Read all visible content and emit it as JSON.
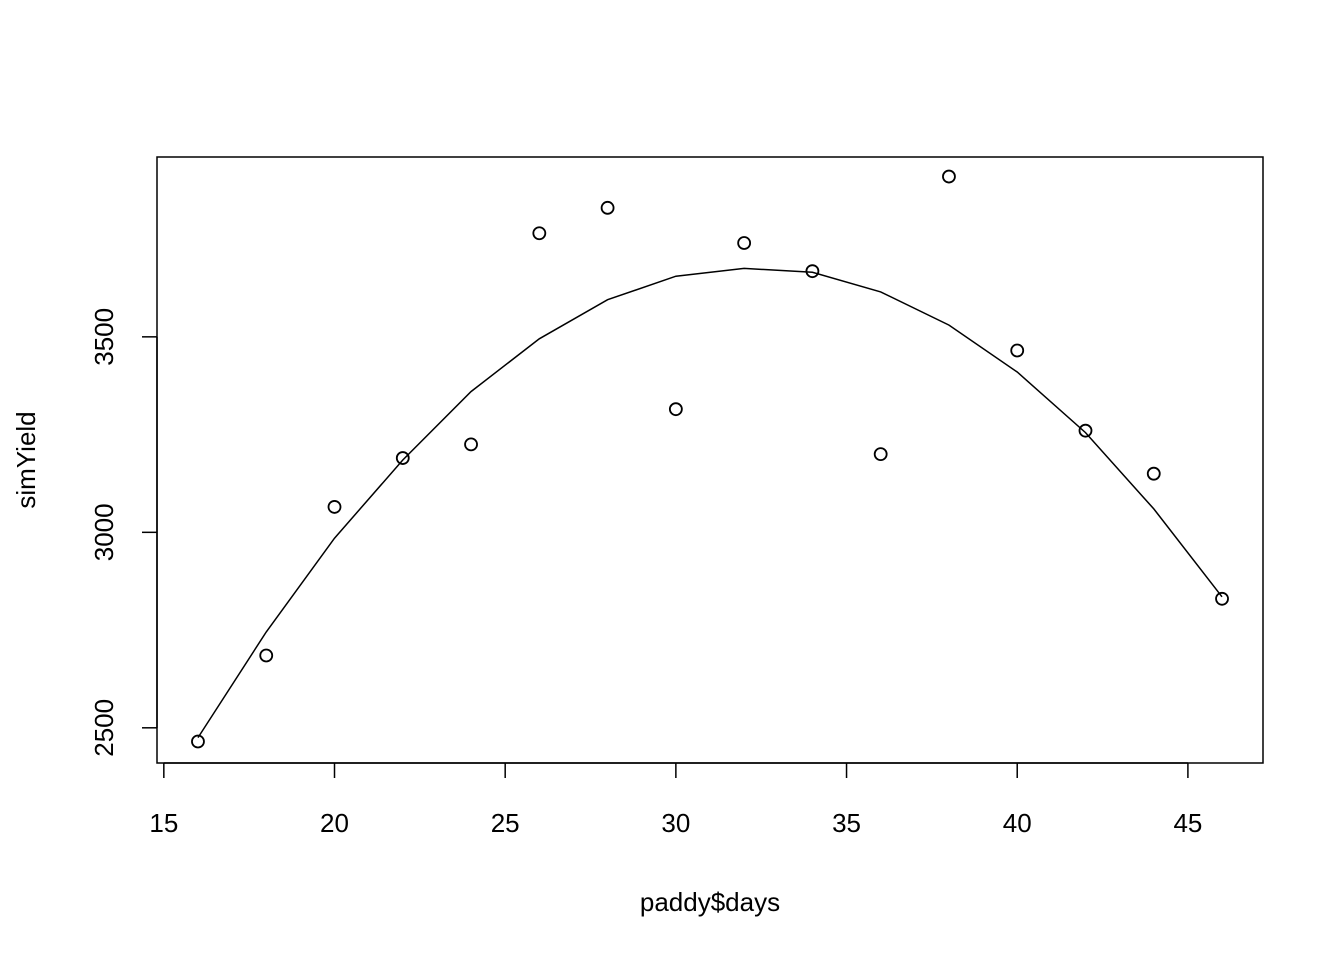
{
  "chart_data": {
    "type": "scatter",
    "xlabel": "paddy$days",
    "ylabel": "simYield",
    "xlim": [
      14.8,
      47.2
    ],
    "ylim": [
      2410,
      3960
    ],
    "x_ticks": [
      15,
      20,
      25,
      30,
      35,
      40,
      45
    ],
    "x_tick_labels": [
      "15",
      "20",
      "25",
      "30",
      "35",
      "40",
      "45"
    ],
    "y_ticks": [
      2500,
      3000,
      3500
    ],
    "y_tick_labels": [
      "2500",
      "3000",
      "3500"
    ],
    "grid": false,
    "box": true,
    "points": {
      "x": [
        16,
        18,
        20,
        22,
        24,
        26,
        28,
        30,
        32,
        34,
        36,
        38,
        40,
        42,
        44,
        46
      ],
      "y": [
        2465,
        2685,
        3065,
        3190,
        3225,
        3765,
        3830,
        3315,
        3740,
        3668,
        3200,
        3910,
        3465,
        3260,
        3150,
        2830
      ]
    },
    "fit_line": {
      "x": [
        16,
        18,
        20,
        22,
        24,
        26,
        28,
        30,
        32,
        34,
        36,
        38,
        40,
        42,
        44,
        46
      ],
      "y": [
        2475,
        2745,
        2985,
        3185,
        3360,
        3495,
        3595,
        3655,
        3675,
        3665,
        3615,
        3530,
        3410,
        3255,
        3060,
        2835
      ]
    },
    "point_color": "#000000",
    "line_color": "#000000"
  }
}
